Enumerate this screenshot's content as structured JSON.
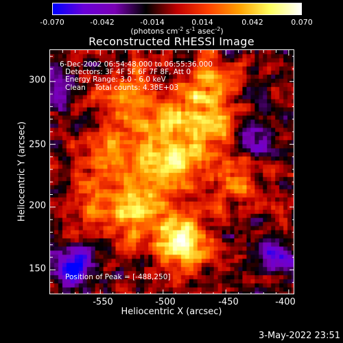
{
  "colorbar": {
    "tick_labels": [
      "-0.070",
      "-0.042",
      "-0.014",
      "0.014",
      "0.042",
      "0.070"
    ],
    "units": {
      "prefix": "(photons cm",
      "exp1": "-2",
      "mid1": " s",
      "exp2": "-1",
      "mid2": " asec",
      "exp3": "-2",
      "suffix": ")"
    },
    "colors": [
      "#0000ff",
      "#6a00d8",
      "#7a00b4",
      "#000000",
      "#c00000",
      "#ff4000",
      "#ffa000",
      "#ffff60",
      "#ffffff"
    ]
  },
  "title": "Reconstructed RHESSI Image",
  "annotations": {
    "time_range": "6-Dec-2002 06:54:48.000 to 06:55:36.000",
    "detectors": "Detectors: 3F 4F 5F 6F 7F 8F, Att 0",
    "energy_range": "Energy Range: 3.0 - 6.0 keV",
    "clean": "Clean    Total counts: 4.38E+03",
    "peak": "Position of Peak = [-488,250]"
  },
  "axes": {
    "xlabel": "Heliocentric X (arcsec)",
    "ylabel": "Heliocentric Y (arcsec)",
    "x_ticks": [
      "-550",
      "-500",
      "-450",
      "-400"
    ],
    "y_ticks": [
      "300",
      "250",
      "200",
      "150"
    ]
  },
  "timestamp": "3-May-2022 23:51",
  "chart_data": {
    "type": "heatmap",
    "title": "Reconstructed RHESSI Image",
    "xlabel": "Heliocentric X (arcsec)",
    "ylabel": "Heliocentric Y (arcsec)",
    "xlim": [
      -590,
      -395
    ],
    "ylim": [
      130,
      325
    ],
    "zlim": [
      -0.07,
      0.07
    ],
    "peak": [
      -488,
      250
    ],
    "blobs": [
      {
        "x": -483,
        "y": 170,
        "amp": 0.075,
        "s": 14
      },
      {
        "x": -520,
        "y": 195,
        "amp": 0.05,
        "s": 18
      },
      {
        "x": -500,
        "y": 240,
        "amp": 0.055,
        "s": 20
      },
      {
        "x": -470,
        "y": 270,
        "amp": 0.05,
        "s": 18
      },
      {
        "x": -525,
        "y": 285,
        "amp": 0.045,
        "s": 16
      },
      {
        "x": -545,
        "y": 240,
        "amp": 0.035,
        "s": 14
      },
      {
        "x": -560,
        "y": 205,
        "amp": 0.03,
        "s": 14
      },
      {
        "x": -440,
        "y": 215,
        "amp": 0.03,
        "s": 16
      },
      {
        "x": -460,
        "y": 300,
        "amp": 0.03,
        "s": 14
      },
      {
        "x": -570,
        "y": 150,
        "amp": -0.06,
        "s": 10
      },
      {
        "x": -410,
        "y": 160,
        "amp": -0.04,
        "s": 10
      },
      {
        "x": -425,
        "y": 255,
        "amp": -0.03,
        "s": 12
      },
      {
        "x": -585,
        "y": 295,
        "amp": -0.03,
        "s": 10
      }
    ]
  }
}
